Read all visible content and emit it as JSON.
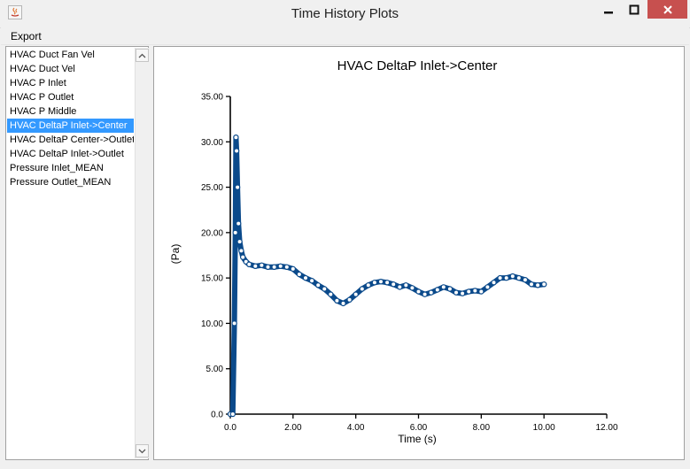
{
  "window": {
    "title": "Time History Plots",
    "icon": "java-icon",
    "controls": [
      "minimize-icon",
      "maximize-icon",
      "close-icon"
    ],
    "close_color": "#c7504f"
  },
  "menu": {
    "export_label": "Export"
  },
  "list": {
    "items": [
      "HVAC Duct Fan Vel",
      "HVAC Duct Vel",
      "HVAC P Inlet",
      "HVAC P Outlet",
      "HVAC P Middle",
      "HVAC DeltaP Inlet->Center",
      "HVAC DeltaP Center->Outlet",
      "HVAC DeltaP Inlet->Outlet",
      "Pressure Inlet_MEAN",
      "Pressure Outlet_MEAN"
    ],
    "selected_index": 5,
    "selection_color": "#3399ff"
  },
  "chart_data": {
    "type": "line",
    "title": "HVAC DeltaP Inlet->Center",
    "xlabel": "Time (s)",
    "ylabel": "(Pa)",
    "xlim": [
      0,
      12
    ],
    "ylim": [
      0,
      35
    ],
    "xticks": [
      "0.0",
      "2.00",
      "4.00",
      "6.00",
      "8.00",
      "10.00",
      "12.00"
    ],
    "yticks": [
      "0.0",
      "5.00",
      "10.00",
      "15.00",
      "20.00",
      "25.00",
      "30.00",
      "35.00"
    ],
    "grid": false,
    "legend": "none",
    "series_color": "#0b4a8b",
    "series": [
      {
        "x": [
          0.0,
          0.08,
          0.13,
          0.16,
          0.18,
          0.2,
          0.23,
          0.26,
          0.3,
          0.35,
          0.4,
          0.5,
          0.6,
          0.8,
          1.0,
          1.2,
          1.4,
          1.6,
          1.8,
          2.0,
          2.2,
          2.4,
          2.6,
          2.8,
          3.0,
          3.2,
          3.4,
          3.6,
          3.8,
          4.0,
          4.2,
          4.4,
          4.6,
          4.8,
          5.0,
          5.2,
          5.4,
          5.6,
          5.8,
          6.0,
          6.2,
          6.4,
          6.6,
          6.8,
          7.0,
          7.2,
          7.4,
          7.6,
          7.8,
          8.0,
          8.2,
          8.4,
          8.6,
          8.8,
          9.0,
          9.2,
          9.4,
          9.6,
          9.8,
          10.0
        ],
        "y": [
          0.0,
          0.0,
          10.0,
          20.0,
          30.5,
          29.0,
          25.0,
          21.0,
          19.0,
          18.0,
          17.3,
          16.8,
          16.5,
          16.3,
          16.4,
          16.2,
          16.2,
          16.3,
          16.2,
          16.0,
          15.4,
          15.0,
          14.7,
          14.2,
          13.8,
          13.2,
          12.5,
          12.2,
          12.6,
          13.2,
          13.8,
          14.2,
          14.5,
          14.6,
          14.5,
          14.3,
          14.0,
          14.2,
          13.9,
          13.5,
          13.2,
          13.4,
          13.7,
          14.0,
          13.8,
          13.4,
          13.3,
          13.5,
          13.6,
          13.5,
          14.0,
          14.5,
          15.0,
          15.0,
          15.2,
          15.0,
          14.8,
          14.3,
          14.2,
          14.3
        ]
      }
    ]
  }
}
